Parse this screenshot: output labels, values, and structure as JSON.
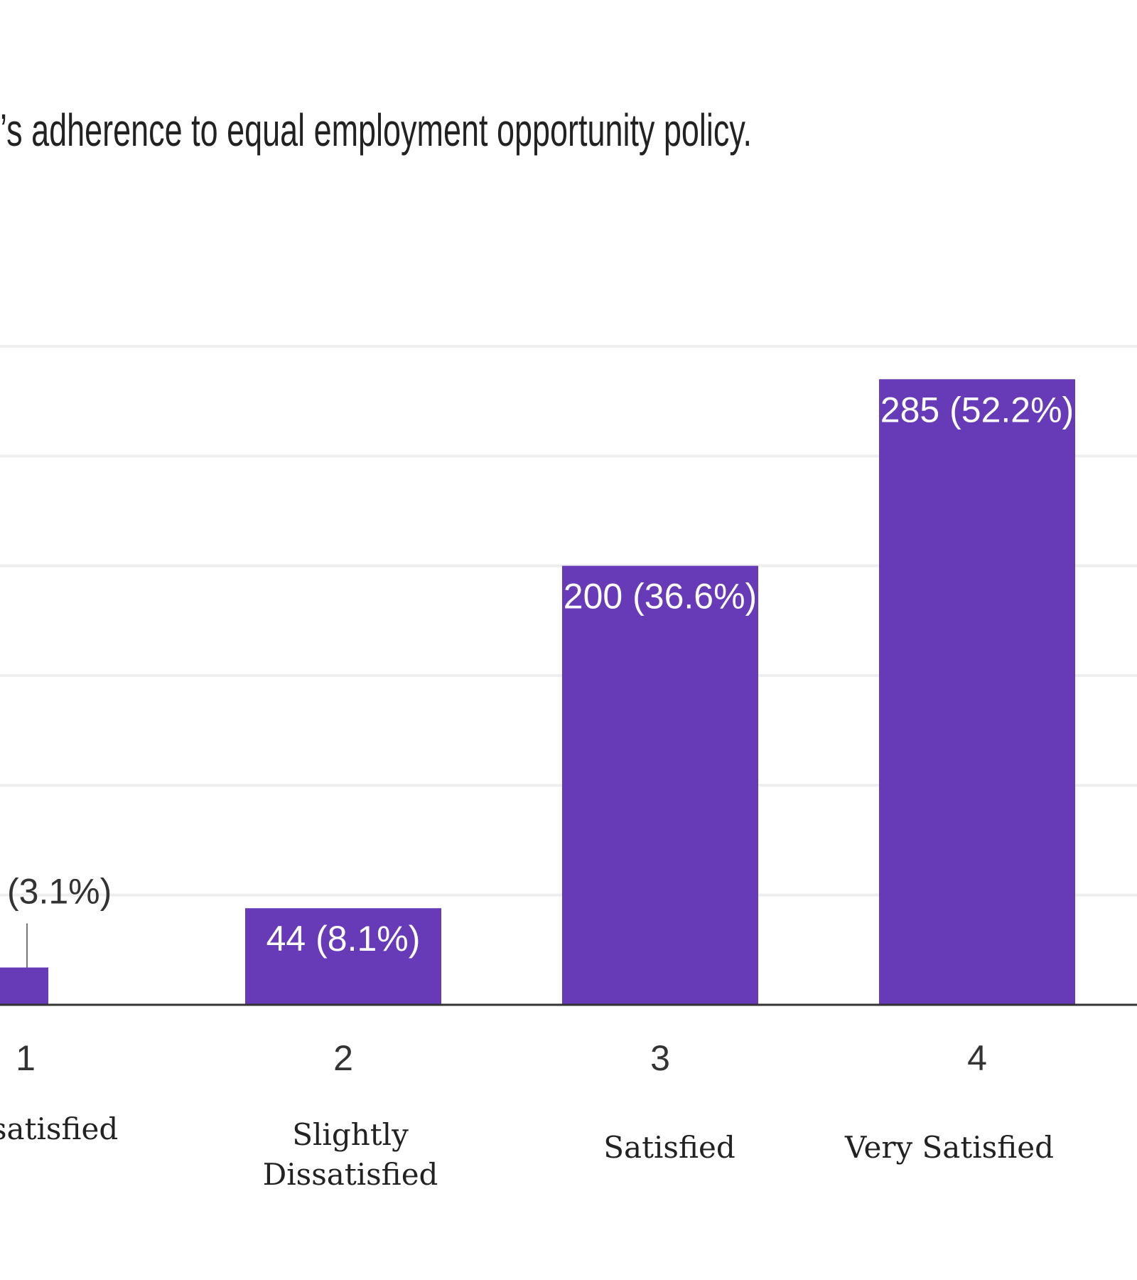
{
  "chart_data": {
    "type": "bar",
    "title": "’s adherence to equal employment opportunity policy.",
    "categories": [
      "1",
      "2",
      "3",
      "4"
    ],
    "category_descriptions": [
      [
        "satisfied"
      ],
      [
        "Slightly",
        "Dissatisfied"
      ],
      [
        "Satisfied"
      ],
      [
        "Very Satisfied"
      ]
    ],
    "values": [
      17,
      44,
      200,
      285
    ],
    "data_labels": [
      "(3.1%)",
      "44 (8.1%)",
      "200 (36.6%)",
      "285 (52.2%)"
    ],
    "xlabel": "",
    "ylabel": "",
    "ylim": [
      0,
      300
    ],
    "grid": true,
    "bar_color": "#673ab7",
    "label_inside_color": "#ffffff",
    "label_outside_color": "#333333",
    "gridline_color": "#eeeeee",
    "axis_color": "#333333"
  }
}
